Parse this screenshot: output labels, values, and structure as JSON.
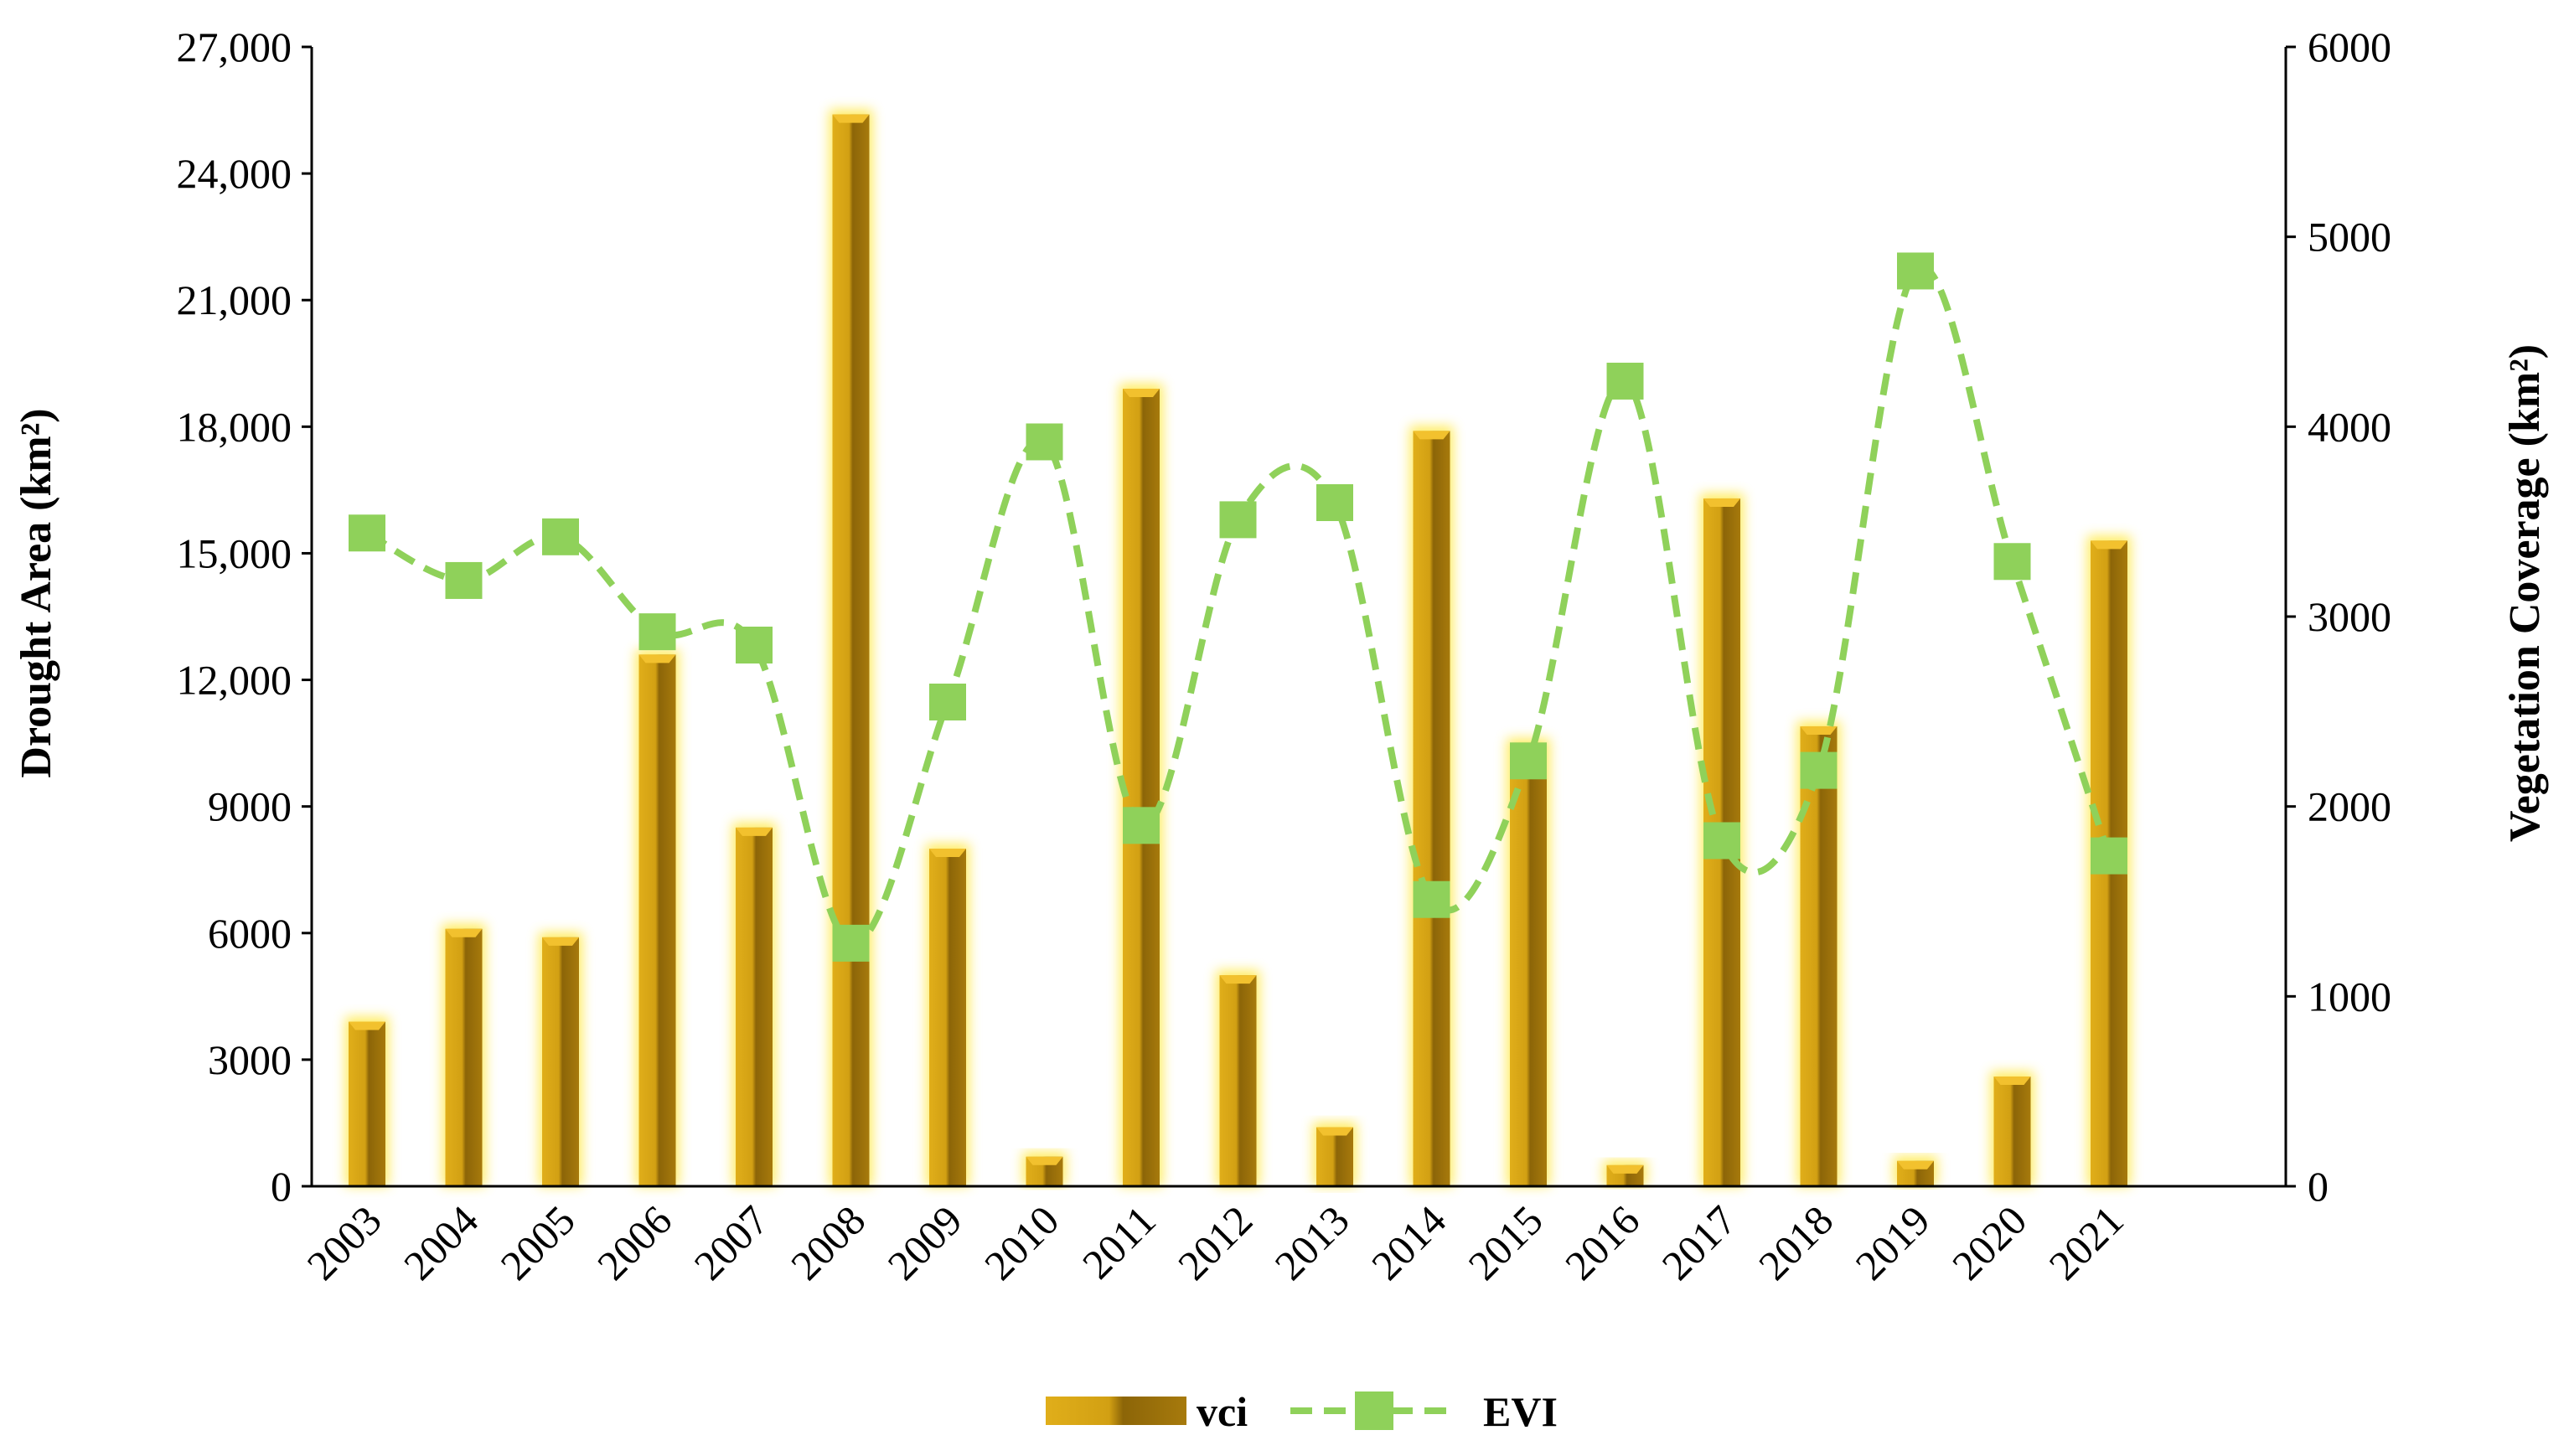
{
  "chart_data": {
    "type": "bar",
    "categories": [
      "2003",
      "2004",
      "2005",
      "2006",
      "2007",
      "2008",
      "2009",
      "2010",
      "2011",
      "2012",
      "2013",
      "2014",
      "2015",
      "2016",
      "2017",
      "2018",
      "2019",
      "2020",
      "2021"
    ],
    "series": [
      {
        "name": "vci",
        "type": "bar",
        "axis": "left",
        "color": "#C99A0E",
        "values": [
          3900,
          6100,
          5900,
          12600,
          8500,
          25400,
          8000,
          700,
          18900,
          5000,
          1400,
          17900,
          10500,
          500,
          16300,
          10900,
          600,
          2600,
          15300
        ]
      },
      {
        "name": "EVI",
        "type": "line",
        "axis": "right",
        "style": "dashed",
        "marker": "square",
        "color": "#8FD15A",
        "values": [
          3440,
          3190,
          3420,
          2920,
          2850,
          1280,
          2550,
          3920,
          1900,
          3510,
          3600,
          1510,
          2240,
          4240,
          1820,
          2190,
          4820,
          3290,
          1740
        ]
      }
    ],
    "left_axis": {
      "label": "Drought Area (km²)",
      "min": 0,
      "max": 27000,
      "ticks": [
        0,
        3000,
        6000,
        9000,
        12000,
        15000,
        18000,
        21000,
        24000,
        27000
      ],
      "tick_labels": [
        "0",
        "3000",
        "6000",
        "9000",
        "12,000",
        "15,000",
        "18,000",
        "21,000",
        "24,000",
        "27,000"
      ]
    },
    "right_axis": {
      "label": "Vegetation Coverage (km²)",
      "min": 0,
      "max": 6000,
      "ticks": [
        0,
        1000,
        2000,
        3000,
        4000,
        5000,
        6000
      ],
      "tick_labels": [
        "0",
        "1000",
        "2000",
        "3000",
        "4000",
        "5000",
        "6000"
      ]
    },
    "grid": false,
    "legend": {
      "position": "bottom",
      "entries": [
        {
          "label": "vci",
          "series": "vci"
        },
        {
          "label": "EVI",
          "series": "EVI"
        }
      ]
    }
  }
}
